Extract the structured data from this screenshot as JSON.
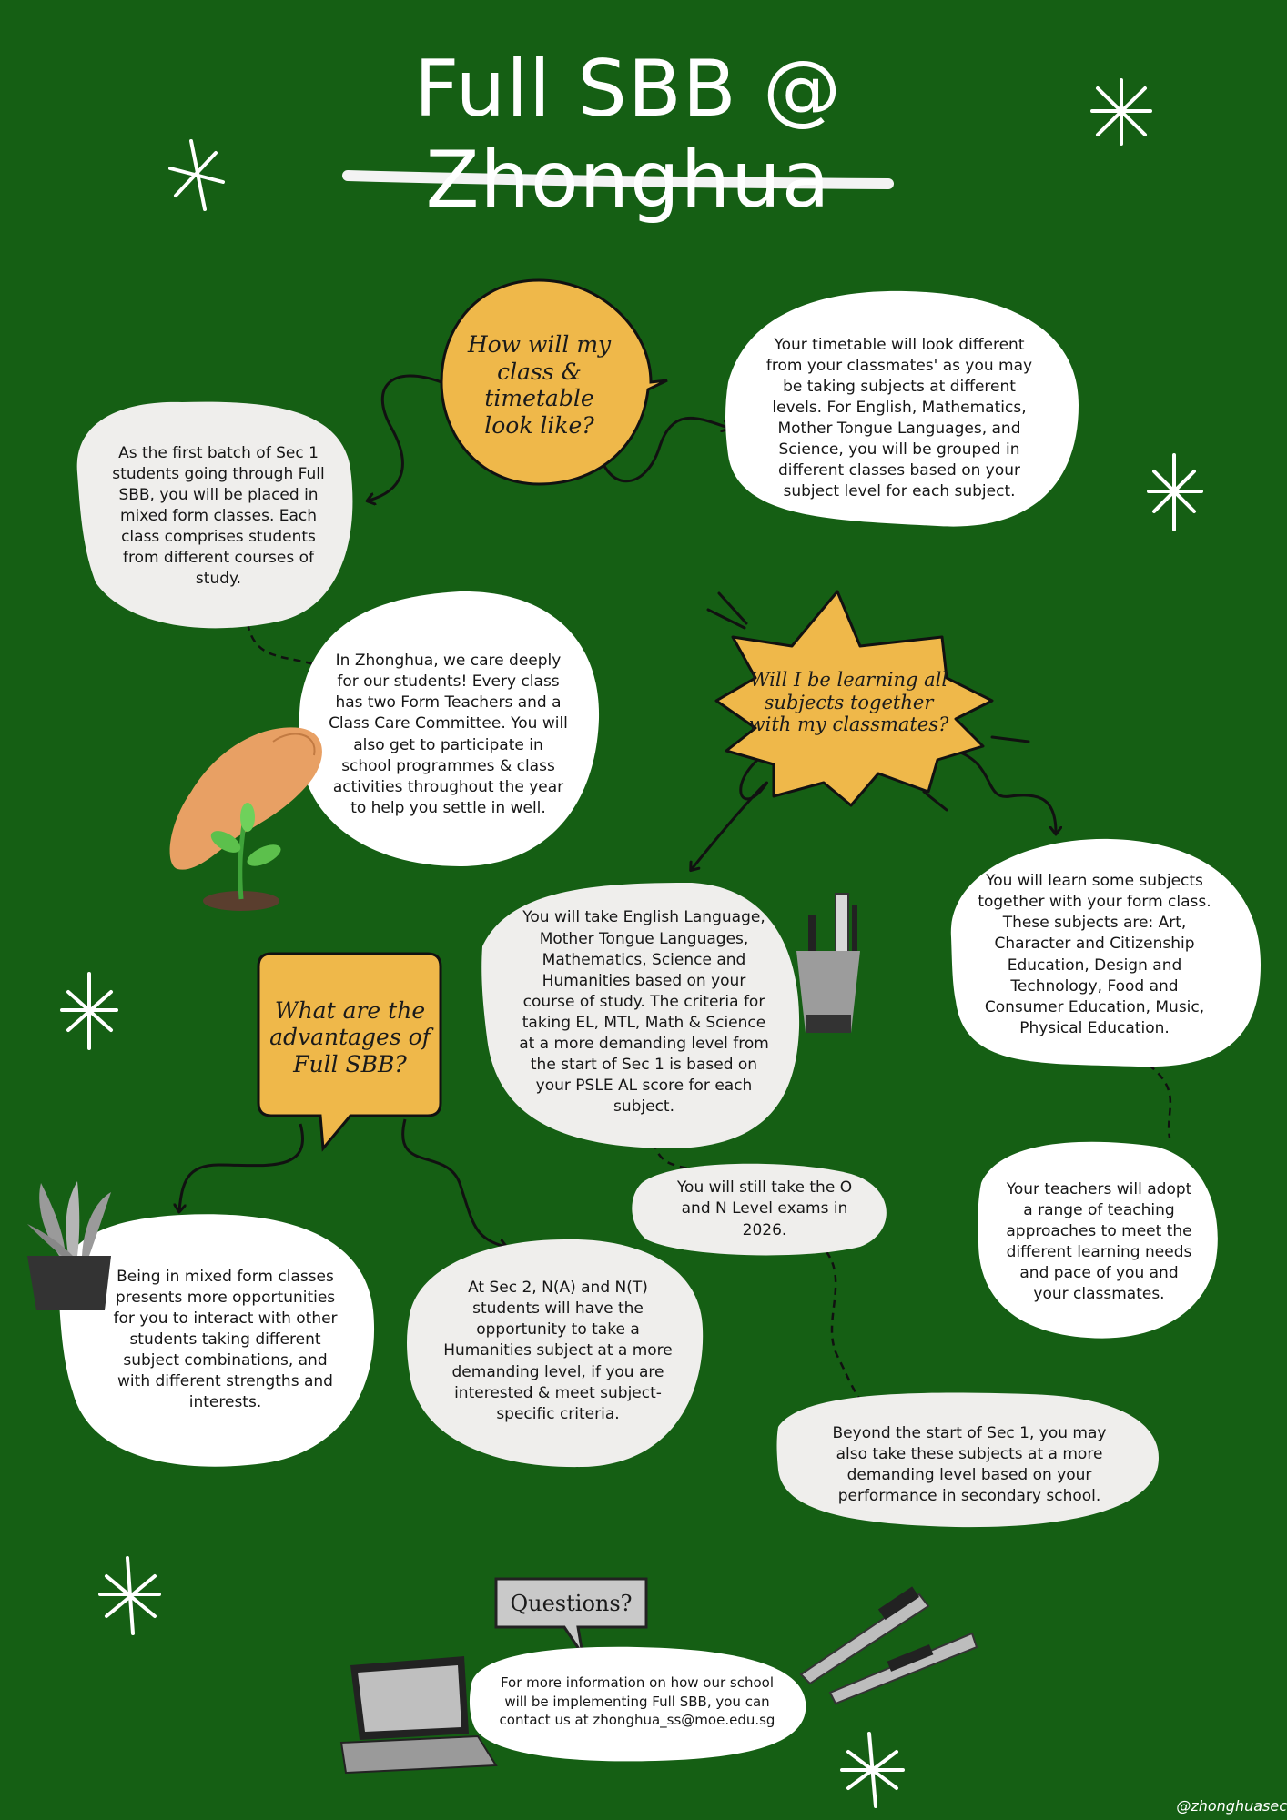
{
  "title": "Full SBB  @ Zhonghua",
  "questions": {
    "timetable": "How will my class & timetable look like?",
    "learning": "Will I be learning all subjects together with my classmates?",
    "advantages": "What are the advantages of Full SBB?",
    "contact": "Questions?"
  },
  "bubbles": {
    "mixed_form": "As the first batch of Sec 1 students going through Full SBB, you will be placed in mixed form classes. Each class comprises students from different courses of study.",
    "timetable_diff": "Your timetable will look different from your classmates' as you may be taking subjects at different levels. For English, Mathematics, Mother Tongue Languages, and Science, you will be grouped in different classes based on your subject level for each subject.",
    "care": "In Zhonghua, we care deeply for our students! Every class has two Form Teachers and a Class Care Committee. You will also get to participate in school programmes & class activities throughout the year to help you settle in well.",
    "take_subjects": "You will take English Language, Mother Tongue Languages, Mathematics, Science and Humanities based on your course of study. The criteria for taking EL, MTL, Math & Science at a more demanding level from the start of Sec 1 is based on your PSLE AL score for each subject.",
    "together": "You will learn some subjects together with your form class. These subjects are: Art, Character and Citizenship Education, Design and Technology, Food and Consumer Education, Music, Physical Education.",
    "exams": "You will still take the O and N Level exams in 2026.",
    "teachers": "Your teachers will adopt a range of teaching approaches to meet the different learning needs and pace of you and your classmates.",
    "beyond": "Beyond the start of Sec 1, you may also take these subjects at a more demanding level based on your performance in secondary school.",
    "mixed_adv": "Being in mixed form classes presents more opportunities for you to interact with other students taking different subject combinations, and with different strengths and interests.",
    "sec2": "At Sec 2, N(A) and N(T) students will have the opportunity to take a Humanities subject at a more demanding level, if you are interested & meet subject-specific criteria.",
    "contact": "For more information on how our school will be implementing Full SBB, you can contact us at zhonghua_ss@moe.edu.sg"
  },
  "handle": "@zhonghuasec",
  "icons": [
    "sparkle-icon",
    "hand-planting-icon",
    "pencil-cup-icon",
    "potted-plant-icon",
    "laptop-icon",
    "pens-icon"
  ],
  "colors": {
    "background": "#155f14",
    "accent": "#efb84a",
    "bubble": "#ffffff",
    "bubble_alt": "#efeeec",
    "grey_tag": "#c9c9c9"
  }
}
